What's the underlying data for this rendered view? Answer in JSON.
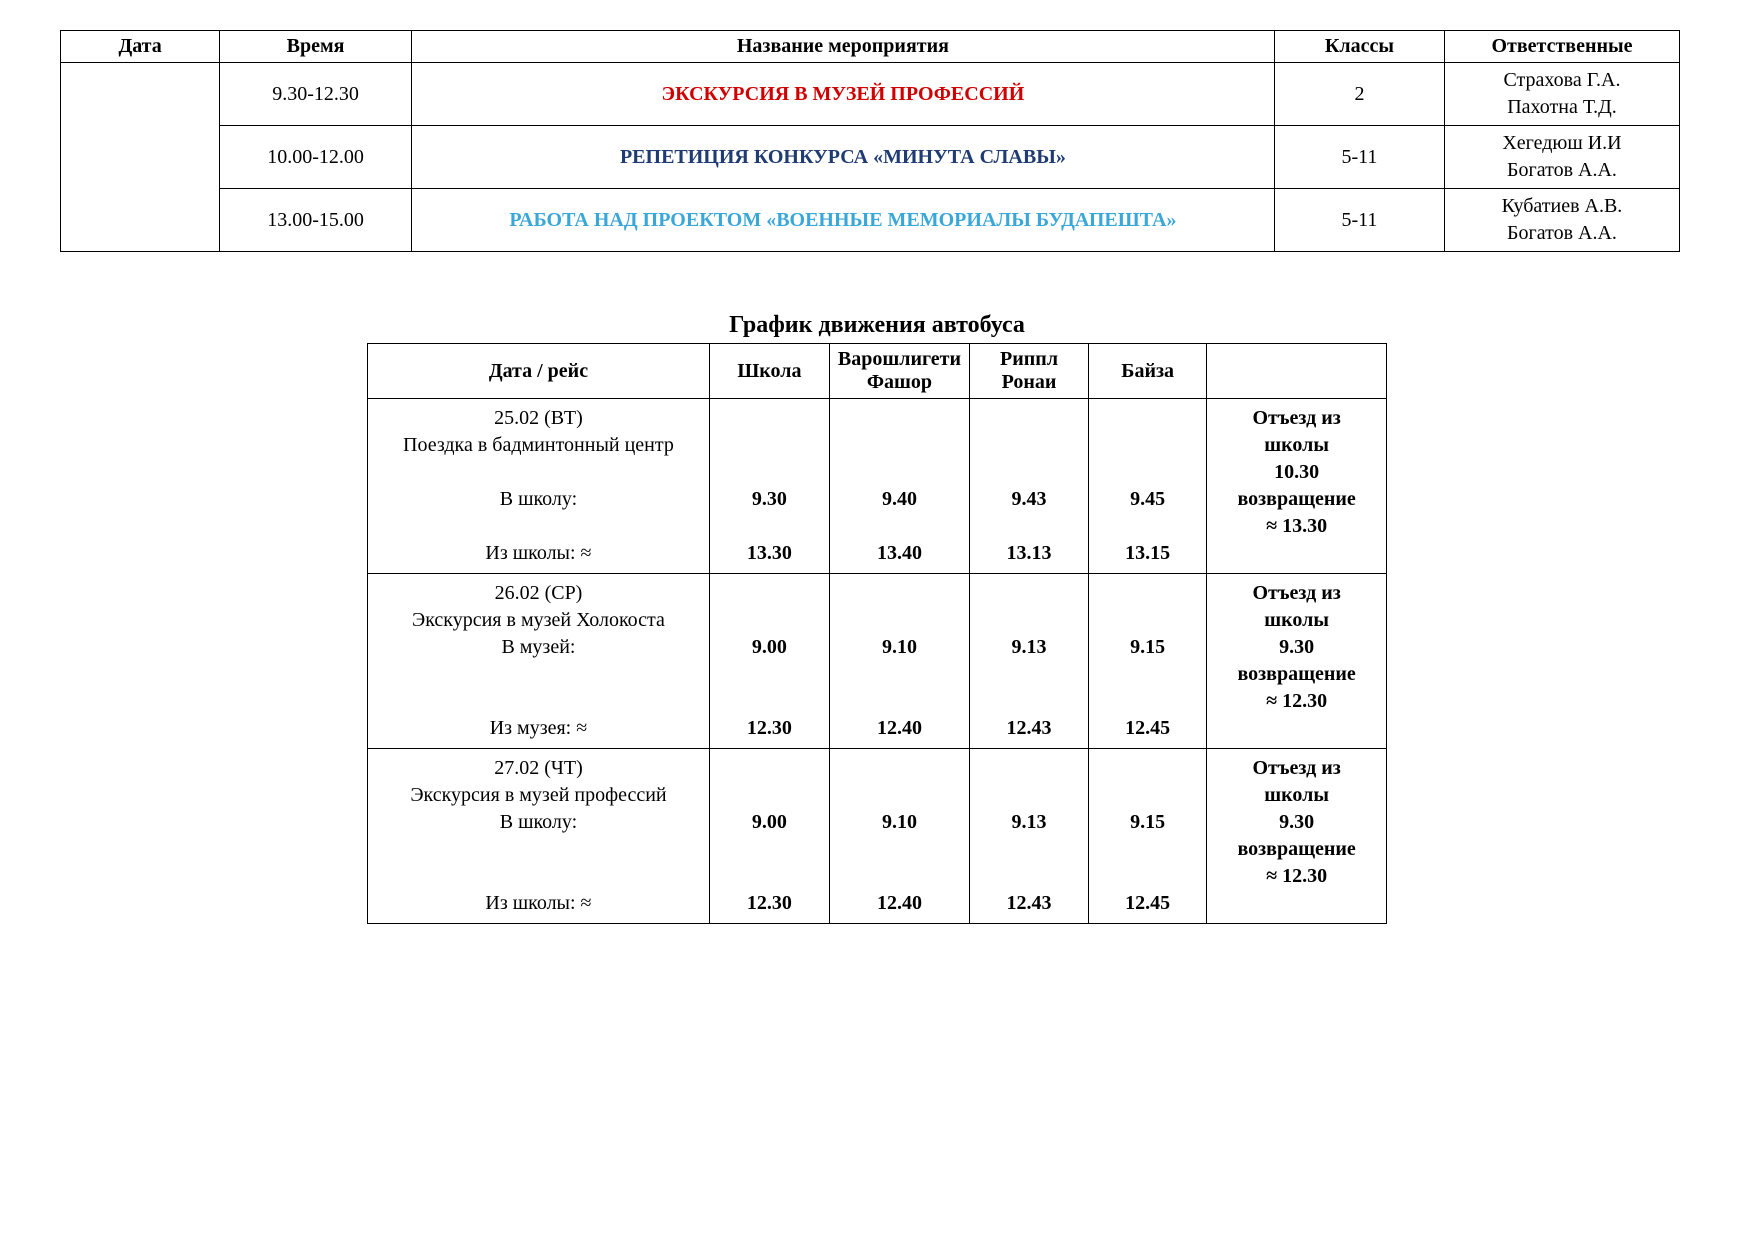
{
  "events_table": {
    "headers": {
      "date": "Дата",
      "time": "Время",
      "event": "Название мероприятия",
      "classes": "Классы",
      "responsible": "Ответственные"
    },
    "rows": [
      {
        "time": "9.30-12.30",
        "event": "ЭКСКУРСИЯ В МУЗЕЙ ПРОФЕССИЙ",
        "event_color": "#d10000",
        "classes": "2",
        "resp1": "Страхова Г.А.",
        "resp2": "Пахотна Т.Д."
      },
      {
        "time": "10.00-12.00",
        "event": "РЕПЕТИЦИЯ КОНКУРСА «МИНУТА СЛАВЫ»",
        "event_color": "#1f3b73",
        "classes": "5-11",
        "resp1": "Хегедюш И.И",
        "resp2": "Богатов А.А."
      },
      {
        "time": "13.00-15.00",
        "event": "РАБОТА НАД ПРОЕКТОМ «ВОЕННЫЕ МЕМОРИАЛЫ БУДАПЕШТА»",
        "event_color": "#3aa7d9",
        "classes": "5-11",
        "resp1": "Кубатиев А.В.",
        "resp2": "Богатов А.А."
      }
    ]
  },
  "bus": {
    "title": "График движения автобуса",
    "headers": {
      "date": "Дата / рейс",
      "stop1": "Школа",
      "stop2": "Варошлигети Фашор",
      "stop3": "Риппл Ронаи",
      "stop4": "Байза",
      "note": ""
    },
    "rows": [
      {
        "date_l1": "25.02 (ВТ)",
        "date_l2": "Поездка в бадминтонный центр",
        "to_label": "В школу:",
        "to": [
          "9.30",
          "9.40",
          "9.43",
          "9.45"
        ],
        "from_label": "Из школы: ≈",
        "from": [
          "13.30",
          "13.40",
          "13.13",
          "13.15"
        ],
        "note_l1": "Отъезд из",
        "note_l2": "школы",
        "note_l3": "10.30",
        "note_l4": "возвращение",
        "note_l5": "≈ 13.30"
      },
      {
        "date_l1": "26.02 (СР)",
        "date_l2": "Экскурсия в музей Холокоста",
        "to_label": "В музей:",
        "to": [
          "9.00",
          "9.10",
          "9.13",
          "9.15"
        ],
        "from_label": "Из музея: ≈",
        "from": [
          "12.30",
          "12.40",
          "12.43",
          "12.45"
        ],
        "note_l1": "Отъезд из",
        "note_l2": "школы",
        "note_l3": "9.30",
        "note_l4": "возвращение",
        "note_l5": "≈ 12.30"
      },
      {
        "date_l1": "27.02 (ЧТ)",
        "date_l2": "Экскурсия в музей профессий",
        "to_label": "В школу:",
        "to": [
          "9.00",
          "9.10",
          "9.13",
          "9.15"
        ],
        "from_label": "Из школы: ≈",
        "from": [
          "12.30",
          "12.40",
          "12.43",
          "12.45"
        ],
        "note_l1": "Отъезд из",
        "note_l2": "школы",
        "note_l3": "9.30",
        "note_l4": "возвращение",
        "note_l5": "≈ 12.30"
      }
    ]
  }
}
